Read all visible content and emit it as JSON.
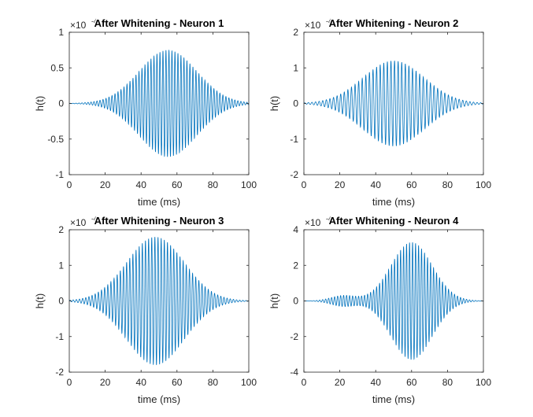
{
  "chart_data": [
    {
      "type": "line",
      "title": "After Whitening - Neuron 1",
      "xlabel": "time (ms)",
      "ylabel": "h(t)",
      "xlim": [
        0,
        100
      ],
      "ylim": [
        -1,
        1
      ],
      "xticks": [
        "0",
        "20",
        "40",
        "60",
        "80",
        "100"
      ],
      "yticks": [
        "-1",
        "-0.5",
        "0",
        "0.5",
        "1"
      ],
      "exponent": {
        "base": "×10",
        "power": "-4"
      },
      "envelope": {
        "amplitude": 0.75,
        "center_ms": 55,
        "width_ms": 16,
        "oscillation_period_ms": 1.67,
        "secondary_amplitude": 0,
        "secondary_center_ms": 0,
        "secondary_width_ms": 1
      },
      "line_color": "#0072BD",
      "grid": false
    },
    {
      "type": "line",
      "title": "After Whitening - Neuron 2",
      "xlabel": "time (ms)",
      "ylabel": "h(t)",
      "xlim": [
        0,
        100
      ],
      "ylim": [
        -2,
        2
      ],
      "xticks": [
        "0",
        "20",
        "40",
        "60",
        "80",
        "100"
      ],
      "yticks": [
        "-2",
        "-1",
        "0",
        "1",
        "2"
      ],
      "exponent": {
        "base": "×10",
        "power": "-4"
      },
      "envelope": {
        "amplitude": 1.2,
        "center_ms": 50,
        "width_ms": 17,
        "oscillation_period_ms": 2.0,
        "secondary_amplitude": 0,
        "secondary_center_ms": 0,
        "secondary_width_ms": 1
      },
      "line_color": "#0072BD",
      "grid": false
    },
    {
      "type": "line",
      "title": "After Whitening - Neuron 3",
      "xlabel": "time (ms)",
      "ylabel": "h(t)",
      "xlim": [
        0,
        100
      ],
      "ylim": [
        -2,
        2
      ],
      "xticks": [
        "0",
        "20",
        "40",
        "60",
        "80",
        "100"
      ],
      "yticks": [
        "-2",
        "-1",
        "0",
        "1",
        "2"
      ],
      "exponent": {
        "base": "×10",
        "power": "-4"
      },
      "envelope": {
        "amplitude": 1.8,
        "center_ms": 48,
        "width_ms": 16,
        "oscillation_period_ms": 1.75,
        "secondary_amplitude": 0,
        "secondary_center_ms": 0,
        "secondary_width_ms": 1
      },
      "line_color": "#0072BD",
      "grid": false
    },
    {
      "type": "line",
      "title": "After Whitening - Neuron 4",
      "xlabel": "time (ms)",
      "ylabel": "h(t)",
      "xlim": [
        0,
        100
      ],
      "ylim": [
        -4,
        4
      ],
      "xticks": [
        "0",
        "20",
        "40",
        "60",
        "80",
        "100"
      ],
      "yticks": [
        "-4",
        "-2",
        "0",
        "2",
        "4"
      ],
      "exponent": {
        "base": "×10",
        "power": "-4"
      },
      "envelope": {
        "amplitude": 3.3,
        "center_ms": 60,
        "width_ms": 11.5,
        "oscillation_period_ms": 1.67,
        "secondary_amplitude": 0.3,
        "secondary_center_ms": 22,
        "secondary_width_ms": 7
      },
      "line_color": "#0072BD",
      "grid": false
    }
  ]
}
